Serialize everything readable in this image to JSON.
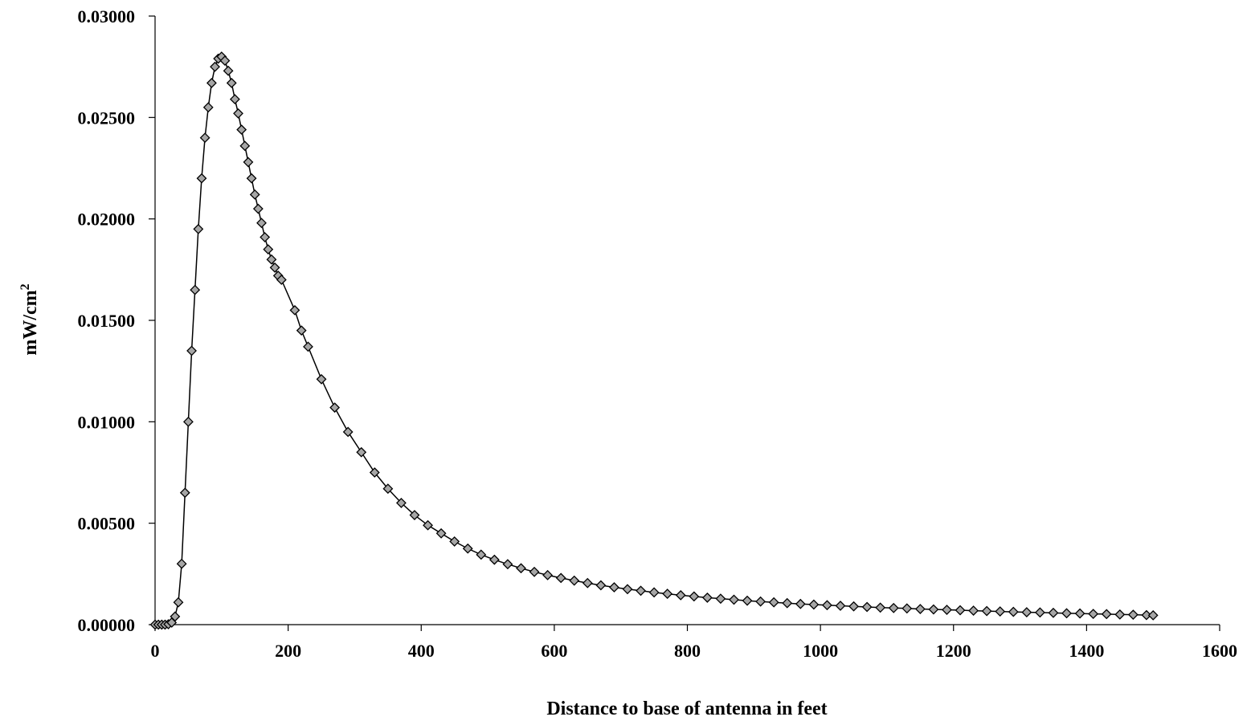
{
  "chart_data": {
    "type": "scatter",
    "xlabel": "Distance to base of antenna in feet",
    "ylabel": "mW/cm",
    "ylabel_superscript": "2",
    "xlim": [
      0,
      1600
    ],
    "ylim": [
      0,
      0.03
    ],
    "x_ticks": [
      "0",
      "200",
      "400",
      "600",
      "800",
      "1000",
      "1200",
      "1400",
      "1600"
    ],
    "y_ticks": [
      "0.00000",
      "0.00500",
      "0.01000",
      "0.01500",
      "0.02000",
      "0.02500",
      "0.03000"
    ],
    "grid": false,
    "legend": "none",
    "marker": "diamond",
    "marker_color": "#a6a6a6",
    "line_color": "#000000",
    "series": [
      {
        "x": [
          0,
          5,
          10,
          15,
          20,
          25,
          30,
          35,
          40,
          45,
          50,
          55,
          60,
          65,
          70,
          75,
          80,
          85,
          90,
          95,
          100,
          105,
          110,
          115,
          120,
          125,
          130,
          135,
          140,
          145,
          150,
          155,
          160,
          165,
          170,
          175,
          180,
          185,
          190,
          210,
          220,
          230,
          250,
          270,
          290,
          310,
          330,
          350,
          370,
          390,
          410,
          430,
          450,
          470,
          490,
          510,
          530,
          550,
          570,
          590,
          610,
          630,
          650,
          670,
          690,
          710,
          730,
          750,
          770,
          790,
          810,
          830,
          850,
          870,
          890,
          910,
          930,
          950,
          970,
          990,
          1010,
          1030,
          1050,
          1070,
          1090,
          1110,
          1130,
          1150,
          1170,
          1190,
          1210,
          1230,
          1250,
          1270,
          1290,
          1310,
          1330,
          1350,
          1370,
          1390,
          1410,
          1430,
          1450,
          1470,
          1490,
          1500
        ],
        "y": [
          0.0,
          0.0,
          0.0,
          0.0,
          2e-05,
          0.0001,
          0.0004,
          0.0011,
          0.003,
          0.0065,
          0.01,
          0.0135,
          0.0165,
          0.0195,
          0.022,
          0.024,
          0.0255,
          0.0267,
          0.0275,
          0.0279,
          0.028,
          0.0278,
          0.0273,
          0.0267,
          0.0259,
          0.0252,
          0.0244,
          0.0236,
          0.0228,
          0.022,
          0.0212,
          0.0205,
          0.0198,
          0.0191,
          0.0185,
          0.018,
          0.0176,
          0.0172,
          0.017,
          0.0155,
          0.0145,
          0.0137,
          0.0121,
          0.0107,
          0.0095,
          0.0085,
          0.0075,
          0.0067,
          0.006,
          0.0054,
          0.0049,
          0.0045,
          0.0041,
          0.00375,
          0.00345,
          0.0032,
          0.00298,
          0.00278,
          0.0026,
          0.00244,
          0.0023,
          0.00217,
          0.00205,
          0.00194,
          0.00184,
          0.00175,
          0.00167,
          0.00159,
          0.00152,
          0.00145,
          0.00139,
          0.00133,
          0.00128,
          0.00123,
          0.00118,
          0.00114,
          0.0011,
          0.00106,
          0.00102,
          0.00099,
          0.00096,
          0.00093,
          0.0009,
          0.00087,
          0.00084,
          0.00082,
          0.0008,
          0.00077,
          0.00075,
          0.00073,
          0.00071,
          0.00069,
          0.00067,
          0.00065,
          0.00063,
          0.00061,
          0.0006,
          0.00058,
          0.00056,
          0.00055,
          0.00053,
          0.00052,
          0.0005,
          0.00049,
          0.00047,
          0.00046
        ]
      }
    ]
  }
}
